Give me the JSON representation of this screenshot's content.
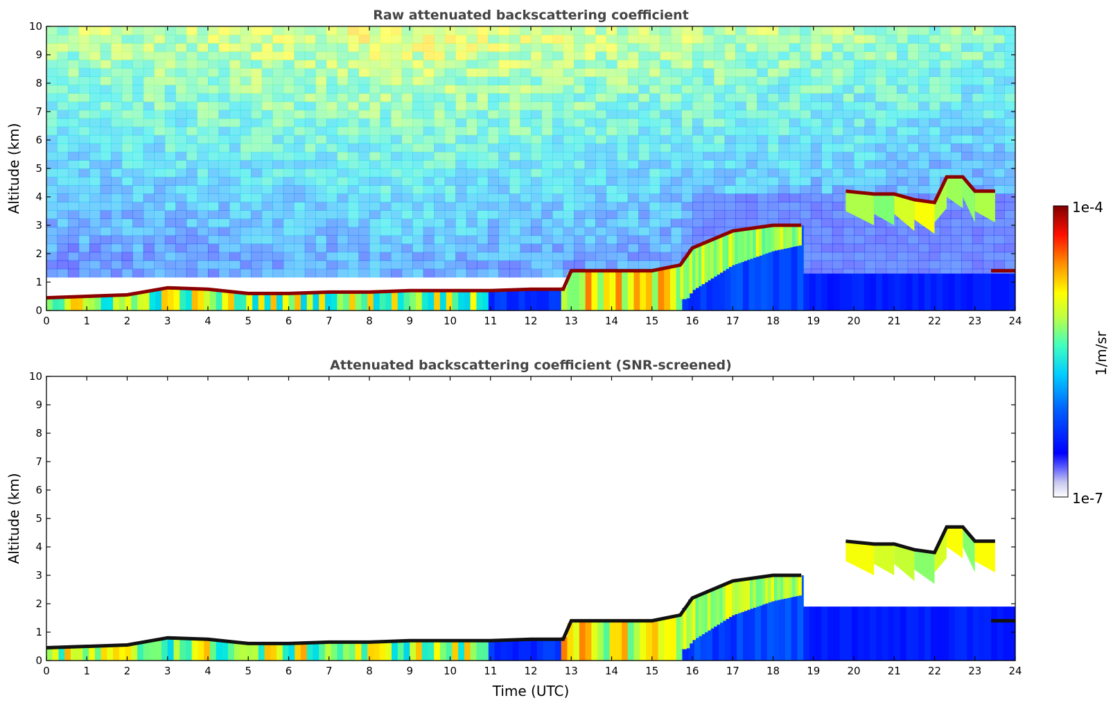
{
  "chart_data": [
    {
      "type": "heatmap",
      "title": "Raw attenuated backscattering coefficient",
      "xlabel": "",
      "ylabel": "Altitude (km)",
      "xlim": [
        0,
        24
      ],
      "ylim": [
        0,
        10
      ],
      "xticks": [
        "0",
        "1",
        "2",
        "3",
        "4",
        "5",
        "6",
        "7",
        "8",
        "9",
        "10",
        "11",
        "12",
        "13",
        "14",
        "15",
        "16",
        "17",
        "18",
        "19",
        "20",
        "21",
        "22",
        "23",
        "24"
      ],
      "yticks": [
        "0",
        "1",
        "2",
        "3",
        "4",
        "5",
        "6",
        "7",
        "8",
        "9",
        "10"
      ],
      "noise_above_signal": true,
      "cloud_layer": {
        "time_utc": [
          0,
          2,
          3,
          4,
          5,
          6,
          7,
          8,
          9,
          10,
          11,
          12,
          12.8,
          13,
          14,
          15,
          15.7,
          16,
          17,
          18,
          18.7
        ],
        "altitude_km": [
          0.45,
          0.55,
          0.8,
          0.75,
          0.6,
          0.6,
          0.65,
          0.65,
          0.7,
          0.7,
          0.7,
          0.75,
          0.75,
          1.4,
          1.4,
          1.4,
          1.6,
          2.2,
          2.8,
          3.0,
          3.0
        ]
      },
      "upper_cloud": {
        "time_utc": [
          19.8,
          20.5,
          21,
          21.5,
          22,
          22.3,
          22.7,
          23,
          23.5
        ],
        "altitude_km": [
          4.2,
          4.1,
          4.1,
          3.9,
          3.8,
          4.7,
          4.7,
          4.2,
          4.2
        ]
      },
      "low_cloud_late": {
        "time_utc": [
          23.4,
          24
        ],
        "altitude_km": [
          1.4,
          1.4
        ]
      }
    },
    {
      "type": "heatmap",
      "title": "Attenuated backscattering coefficient (SNR-screened)",
      "xlabel": "Time (UTC)",
      "ylabel": "Altitude (km)",
      "xlim": [
        0,
        24
      ],
      "ylim": [
        0,
        10
      ],
      "xticks": [
        "0",
        "1",
        "2",
        "3",
        "4",
        "5",
        "6",
        "7",
        "8",
        "9",
        "10",
        "11",
        "12",
        "13",
        "14",
        "15",
        "16",
        "17",
        "18",
        "19",
        "20",
        "21",
        "22",
        "23",
        "24"
      ],
      "yticks": [
        "0",
        "1",
        "2",
        "3",
        "4",
        "5",
        "6",
        "7",
        "8",
        "9",
        "10"
      ],
      "noise_above_signal": false
    }
  ],
  "colorbar": {
    "label": "1/m/sr",
    "max_label": "1e-4",
    "min_label": "1e-7",
    "colormap": "jet",
    "scale": "log"
  }
}
